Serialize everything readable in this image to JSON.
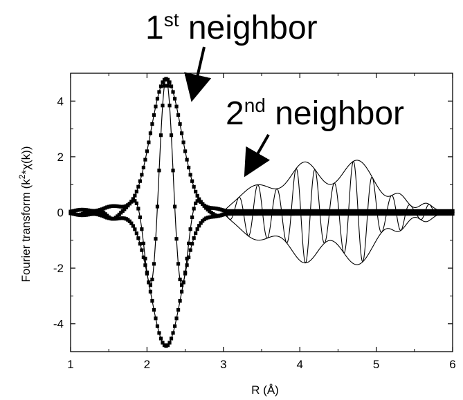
{
  "chart_data": {
    "type": "line",
    "xlabel": "R (Å)",
    "ylabel_parts": {
      "base": "Fourier transform (k",
      "sup": "2",
      "rest": "*χ(k))"
    },
    "xlim": [
      1,
      6
    ],
    "ylim": [
      -5,
      5
    ],
    "x_ticks": [
      1,
      2,
      3,
      4,
      5,
      6
    ],
    "y_ticks": [
      -4,
      -2,
      0,
      2,
      4
    ],
    "grid": false,
    "legend": "none",
    "annotations": [
      {
        "id": "first",
        "main": "1",
        "sup": "st",
        "rest": " neighbor",
        "target": [
          2.55,
          4.35
        ]
      },
      {
        "id": "second",
        "main": "2",
        "sup": "nd",
        "rest": " neighbor",
        "target": [
          3.38,
          1.4
        ]
      }
    ],
    "series": [
      {
        "role": "fit",
        "marker": "square",
        "components": [
          {
            "type": "gaussian",
            "center": 2.25,
            "amplitude": 4.8,
            "sigma": 0.2
          },
          {
            "type": "gaussian",
            "center": 1.55,
            "amplitude": 0.22,
            "sigma": 0.12
          },
          {
            "type": "gaussian",
            "center": 1.15,
            "amplitude": 0.1,
            "sigma": 0.1
          },
          {
            "type": "gaussian",
            "center": 2.9,
            "amplitude": 0.12,
            "sigma": 0.1
          }
        ],
        "phase_period": 0.47,
        "tail_amplitude": 0.05
      },
      {
        "role": "data",
        "marker": "none",
        "components": [
          {
            "type": "gaussian",
            "center": 3.45,
            "amplitude": 0.93,
            "sigma": 0.22
          },
          {
            "type": "gaussian",
            "center": 4.07,
            "amplitude": 1.73,
            "sigma": 0.2
          },
          {
            "type": "gaussian",
            "center": 4.75,
            "amplitude": 1.82,
            "sigma": 0.22
          },
          {
            "type": "gaussian",
            "center": 5.3,
            "amplitude": 0.55,
            "sigma": 0.1
          },
          {
            "type": "gaussian",
            "center": 5.65,
            "amplitude": 0.28,
            "sigma": 0.08
          }
        ],
        "phase_period": 0.25,
        "x_start": 3.0
      }
    ]
  }
}
